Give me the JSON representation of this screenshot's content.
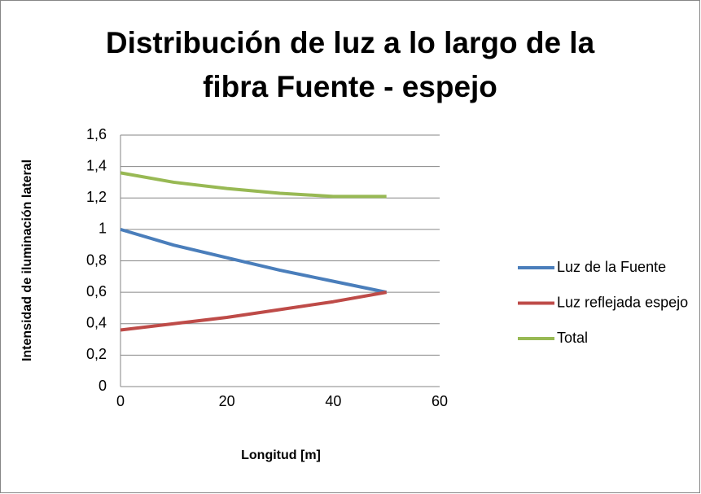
{
  "chart_data": {
    "type": "line",
    "title": [
      "Distribución de luz a lo largo de la",
      "fibra Fuente - espejo"
    ],
    "x_label": "Longitud [m]",
    "y_label": "Intensidad de iluminación lateral",
    "x": [
      0,
      10,
      20,
      30,
      40,
      50
    ],
    "series": [
      {
        "name": "Luz de la Fuente",
        "color": "#4a7ebb",
        "values": [
          1,
          0.9,
          0.82,
          0.74,
          0.67,
          0.6
        ]
      },
      {
        "name": "Luz reflejada espejo",
        "color": "#be4b48",
        "values": [
          0.36,
          0.4,
          0.44,
          0.49,
          0.54,
          0.6
        ]
      },
      {
        "name": "Total",
        "color": "#98b954",
        "values": [
          1.36,
          1.3,
          1.26,
          1.23,
          1.21,
          1.21
        ]
      }
    ],
    "xlim": [
      0,
      60
    ],
    "xticks": [
      0,
      20,
      40,
      60
    ],
    "ylim": [
      0,
      1.6
    ],
    "yticks": [
      0,
      {
        "value": 0.2,
        "label": "0,2"
      },
      {
        "value": 0.4,
        "label": "0,4"
      },
      {
        "value": 0.6,
        "label": "0,6"
      },
      {
        "value": 0.8,
        "label": "0,8"
      },
      1,
      {
        "value": 1.2,
        "label": "1,2"
      },
      {
        "value": 1.4,
        "label": "1,4"
      },
      {
        "value": 1.6,
        "label": "1,6"
      }
    ],
    "grid": true,
    "legend": "right"
  }
}
